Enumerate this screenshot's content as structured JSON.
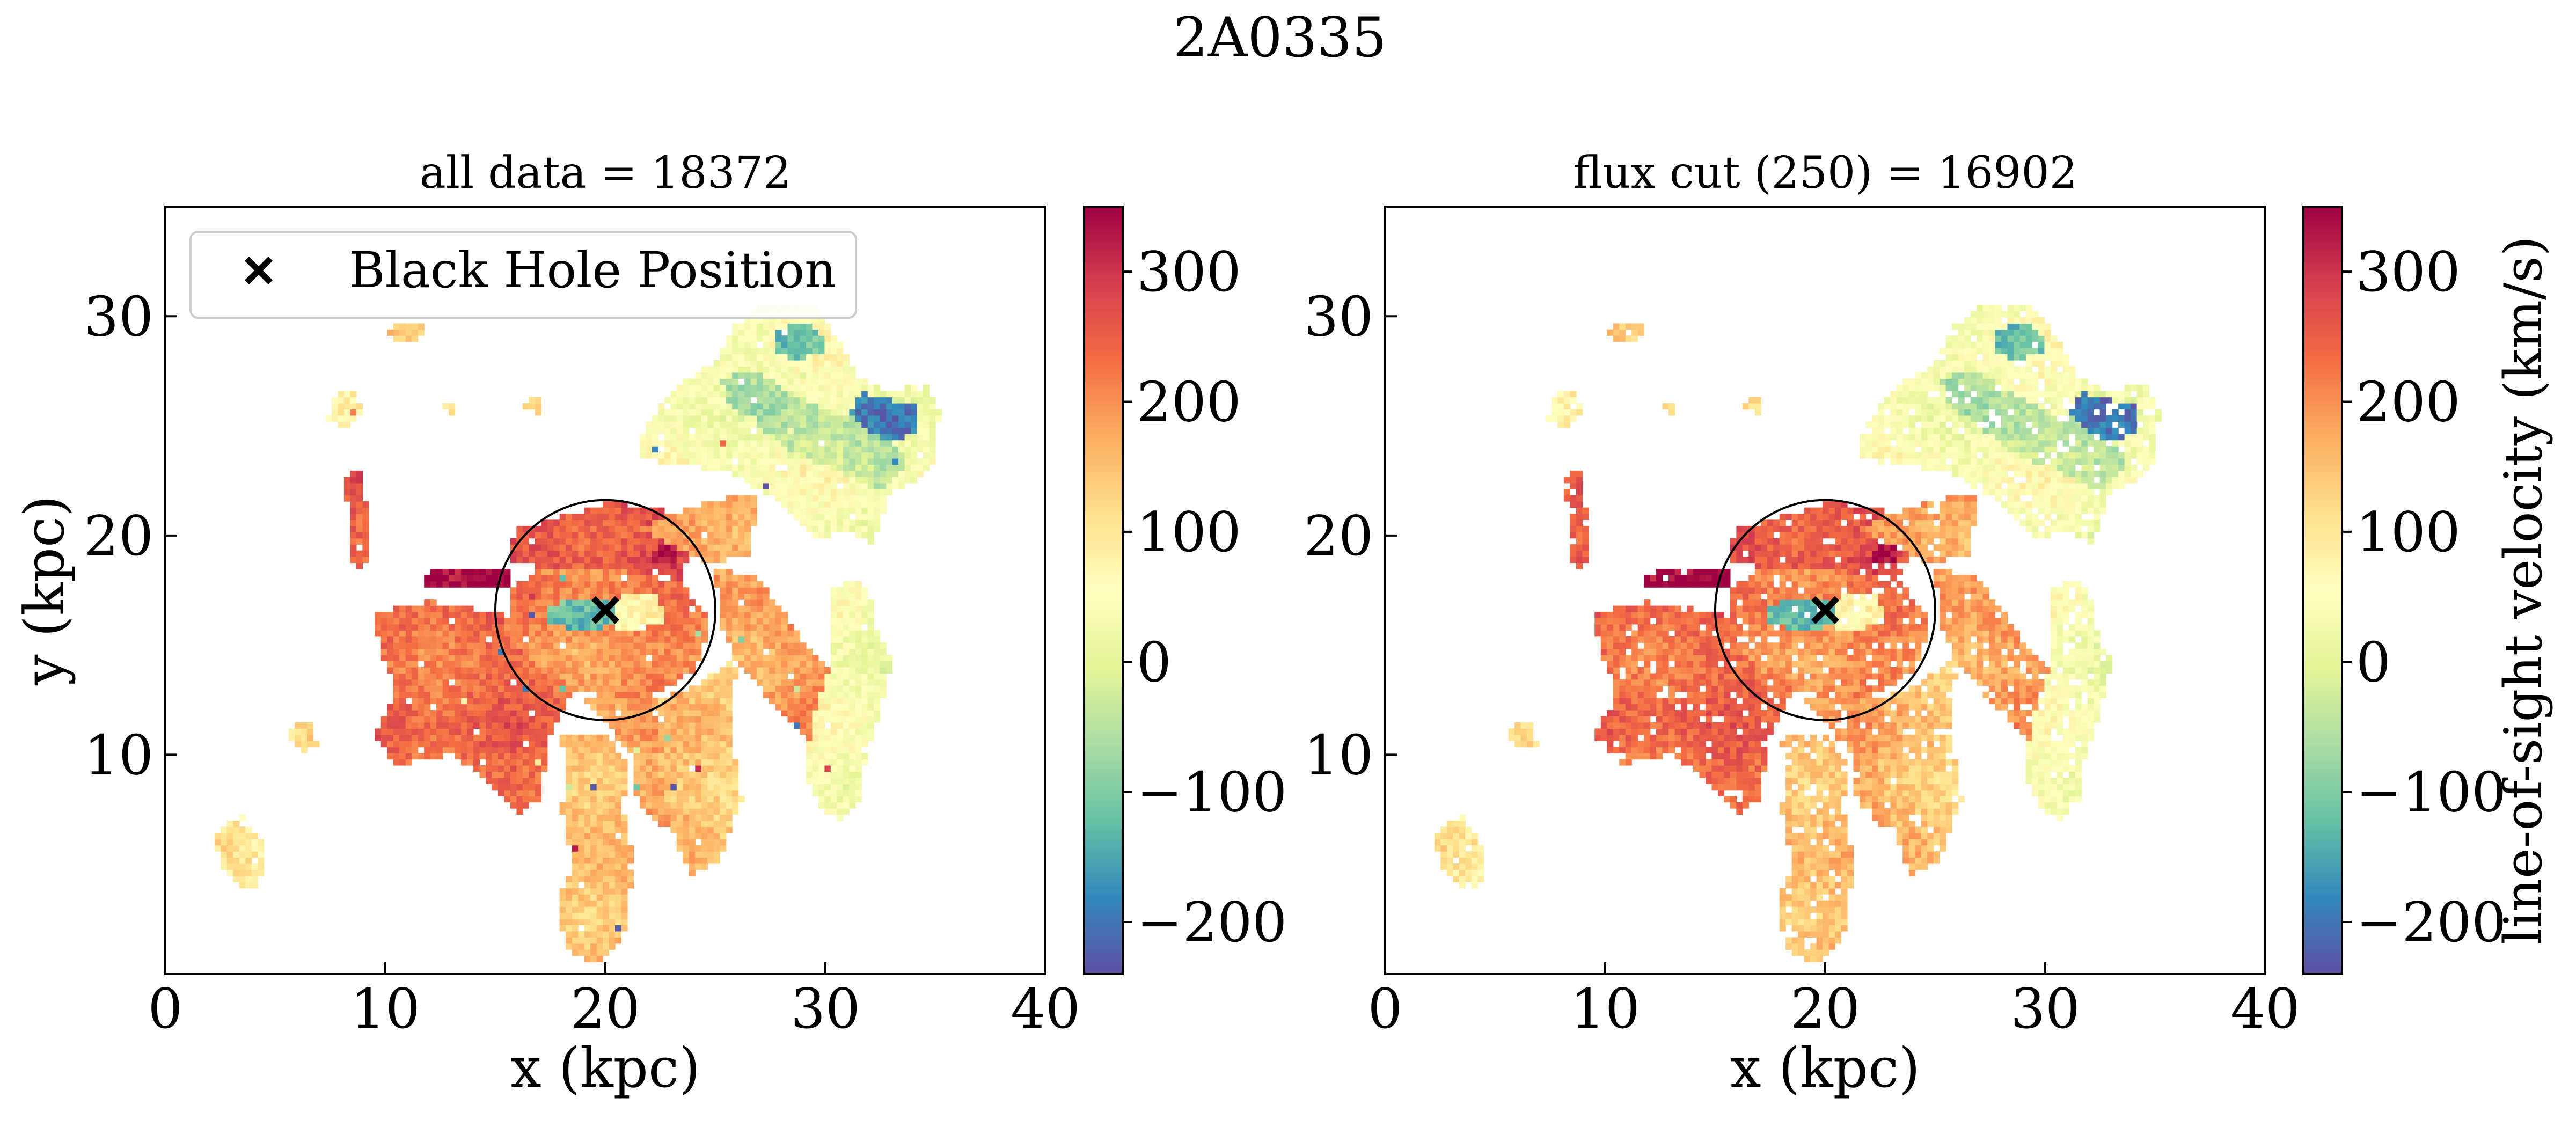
{
  "suptitle": "2A0335",
  "colorbar": {
    "label": "line-of-sight velocity (km/s)",
    "vmin": -240,
    "vmax": 350,
    "ticks": [
      -200,
      -100,
      0,
      100,
      200,
      300
    ],
    "tick_labels": [
      "−200",
      "−100",
      "0",
      "100",
      "200",
      "300"
    ],
    "colormap": "Spectral_r",
    "colors": [
      "#5e4fa2",
      "#3288bd",
      "#66c2a5",
      "#abdda4",
      "#e6f598",
      "#ffffbf",
      "#fee08b",
      "#fdae61",
      "#f46d43",
      "#d53e4f",
      "#9e0142"
    ]
  },
  "legend": {
    "marker_icon": "x-marker-icon",
    "label": "Black Hole Position",
    "placement": "upper-left"
  },
  "chart_data": [
    {
      "type": "heatmap",
      "title": "all data = 18372",
      "xlabel": "x (kpc)",
      "ylabel": "y (kpc)",
      "xlim": [
        0,
        40
      ],
      "ylim": [
        0,
        35
      ],
      "xticks": [
        0,
        10,
        20,
        30,
        40
      ],
      "yticks": [
        10,
        20,
        30
      ],
      "black_hole": {
        "x": 20.0,
        "y": 16.6
      },
      "circle": {
        "cx": 20.0,
        "cy": 16.6,
        "r": 5.0
      },
      "pixel_count": 18372,
      "noise": 0.9,
      "regions": [
        {
          "name": "west-lobe",
          "poly": [
            [
              9.5,
              16.5
            ],
            [
              12,
              17
            ],
            [
              15,
              16.5
            ],
            [
              18,
              15.5
            ],
            [
              18.5,
              13
            ],
            [
              17.5,
              11
            ],
            [
              17,
              8
            ],
            [
              16,
              7.3
            ],
            [
              14.5,
              9
            ],
            [
              13,
              10
            ],
            [
              10.5,
              9.5
            ],
            [
              9.5,
              11
            ],
            [
              10.5,
              13
            ],
            [
              9.8,
              14.5
            ]
          ],
          "v": 235
        },
        {
          "name": "red-north",
          "poly": [
            [
              15.5,
              19
            ],
            [
              16,
              20.3
            ],
            [
              18.5,
              21
            ],
            [
              20,
              21.5
            ],
            [
              22.5,
              21.3
            ],
            [
              24,
              20.2
            ],
            [
              23.5,
              18
            ],
            [
              21,
              18.3
            ],
            [
              18,
              18.2
            ]
          ],
          "v": 265
        },
        {
          "name": "red-peak",
          "poly": [
            [
              21.8,
              18.8
            ],
            [
              23.5,
              20.8
            ],
            [
              23.3,
              18.8
            ]
          ],
          "v": 320
        },
        {
          "name": "core",
          "poly": [
            [
              15.7,
              17.5
            ],
            [
              17,
              18.5
            ],
            [
              20,
              18.6
            ],
            [
              23.5,
              17.8
            ],
            [
              24.8,
              16
            ],
            [
              24,
              13.8
            ],
            [
              21.8,
              12.5
            ],
            [
              19,
              12.8
            ],
            [
              16.8,
              14
            ],
            [
              15.5,
              15.8
            ]
          ],
          "v": 205
        },
        {
          "name": "core-blue",
          "poly": [
            [
              17.3,
              16.8
            ],
            [
              18.8,
              17.2
            ],
            [
              20.3,
              16.9
            ],
            [
              20.5,
              16
            ],
            [
              19,
              15.6
            ],
            [
              17.5,
              16
            ]
          ],
          "v": -120
        },
        {
          "name": "core-yellow",
          "poly": [
            [
              20.5,
              17.2
            ],
            [
              22.3,
              17.3
            ],
            [
              22.8,
              16.2
            ],
            [
              21.5,
              15.6
            ],
            [
              20.5,
              15.8
            ]
          ],
          "v": 55
        },
        {
          "name": "red-tongue",
          "poly": [
            [
              11.8,
              17.8
            ],
            [
              12,
              18.4
            ],
            [
              14.5,
              18.5
            ],
            [
              15.8,
              18.3
            ],
            [
              15.8,
              17.6
            ],
            [
              13,
              17.5
            ]
          ],
          "v": 340
        },
        {
          "name": "south-spur",
          "poly": [
            [
              18,
              10.8
            ],
            [
              20,
              11
            ],
            [
              21,
              9.5
            ],
            [
              20.8,
              7.5
            ],
            [
              21.3,
              5
            ],
            [
              20.8,
              1.5
            ],
            [
              19.5,
              0.5
            ],
            [
              18.3,
              1
            ],
            [
              17.8,
              3.2
            ],
            [
              18.5,
              5
            ],
            [
              18,
              7.5
            ],
            [
              18.3,
              9
            ]
          ],
          "v": 160
        },
        {
          "name": "south-spur-east",
          "poly": [
            [
              19,
              12.6
            ],
            [
              22.5,
              12.6
            ],
            [
              24.5,
              10
            ],
            [
              24,
              7.2
            ],
            [
              23,
              6.5
            ],
            [
              21.5,
              7.6
            ],
            [
              21.2,
              10
            ]
          ],
          "v": 170
        },
        {
          "name": "east-orange",
          "poly": [
            [
              22.3,
              12.5
            ],
            [
              24.2,
              13.2
            ],
            [
              26,
              14.5
            ],
            [
              25.7,
              11
            ],
            [
              26.2,
              8
            ],
            [
              25.2,
              5.2
            ],
            [
              24,
              4.5
            ],
            [
              23.2,
              6
            ],
            [
              22.5,
              9
            ]
          ],
          "v": 145
        },
        {
          "name": "east-arm",
          "poly": [
            [
              25,
              18.5
            ],
            [
              27,
              18
            ],
            [
              29,
              15.2
            ],
            [
              31,
              13.2
            ],
            [
              32,
              12
            ],
            [
              31.5,
              10.2
            ],
            [
              29.5,
              10.5
            ],
            [
              27.5,
              12.5
            ],
            [
              26.2,
              14
            ],
            [
              25.2,
              16
            ]
          ],
          "v": 185
        },
        {
          "name": "north-bridge",
          "poly": [
            [
              21.5,
              20.4
            ],
            [
              24.5,
              21.5
            ],
            [
              27,
              22
            ],
            [
              26.5,
              19
            ],
            [
              24.5,
              18.8
            ],
            [
              22.5,
              19.8
            ]
          ],
          "v": 190
        },
        {
          "name": "north-plume",
          "poly": [
            [
              21.5,
              23.5
            ],
            [
              24,
              23.2
            ],
            [
              25.8,
              22.8
            ],
            [
              28,
              21.5
            ],
            [
              29.5,
              19.8
            ],
            [
              31,
              20.2
            ],
            [
              32.2,
              19.5
            ],
            [
              32.8,
              21.8
            ],
            [
              34.8,
              23
            ],
            [
              35.2,
              25.5
            ],
            [
              34.5,
              27
            ],
            [
              33,
              26.5
            ],
            [
              31.5,
              27.2
            ],
            [
              30.5,
              29
            ],
            [
              29.5,
              30.5
            ],
            [
              27.2,
              30.6
            ],
            [
              25.8,
              29.5
            ],
            [
              25,
              28
            ],
            [
              23.2,
              26.8
            ],
            [
              21.8,
              25
            ]
          ],
          "v": 40
        },
        {
          "name": "plume-green",
          "poly": [
            [
              25.3,
              27.2
            ],
            [
              27,
              27.5
            ],
            [
              28.5,
              26.5
            ],
            [
              30.5,
              25.5
            ],
            [
              32.5,
              25.2
            ],
            [
              33.8,
              23.2
            ],
            [
              32.3,
              22
            ],
            [
              30.5,
              23
            ],
            [
              29,
              23.5
            ],
            [
              27,
              25
            ],
            [
              25.5,
              26
            ]
          ],
          "v": -45
        },
        {
          "name": "plume-blue-1",
          "poly": [
            [
              27.8,
              29.4
            ],
            [
              29.3,
              29.8
            ],
            [
              30.2,
              28.5
            ],
            [
              28.6,
              28
            ],
            [
              27.6,
              28.5
            ]
          ],
          "v": -140
        },
        {
          "name": "plume-blue-2",
          "poly": [
            [
              31.6,
              26.5
            ],
            [
              33,
              26.2
            ],
            [
              34.2,
              25.9
            ],
            [
              34.2,
              24.8
            ],
            [
              33,
              24.3
            ],
            [
              31.8,
              24.9
            ],
            [
              31.1,
              25.7
            ]
          ],
          "v": -175
        },
        {
          "name": "east-filament",
          "poly": [
            [
              30.3,
              17.5
            ],
            [
              31.3,
              18
            ],
            [
              32,
              17.5
            ],
            [
              32.2,
              16
            ],
            [
              33,
              14.2
            ],
            [
              32.5,
              12
            ],
            [
              31.8,
              10
            ],
            [
              31.7,
              8
            ],
            [
              30.8,
              7
            ],
            [
              29.8,
              7.6
            ],
            [
              29,
              9
            ],
            [
              29.5,
              12
            ],
            [
              30.2,
              14
            ]
          ],
          "v": 35
        },
        {
          "name": "west-filament",
          "poly": [
            [
              8,
              22.5
            ],
            [
              8.8,
              23
            ],
            [
              9.2,
              21
            ],
            [
              9.3,
              19.5
            ],
            [
              9,
              18.5
            ],
            [
              8.4,
              18.8
            ],
            [
              8.5,
              20.5
            ]
          ],
          "v": 240
        },
        {
          "name": "west-blob-nw",
          "poly": [
            [
              7.5,
              26.3
            ],
            [
              8.5,
              26.8
            ],
            [
              9,
              25.7
            ],
            [
              8.2,
              24.8
            ],
            [
              7.4,
              25.3
            ]
          ],
          "v": 85
        },
        {
          "name": "west-blob-n",
          "poly": [
            [
              10,
              29.5
            ],
            [
              11.8,
              29.8
            ],
            [
              11.5,
              28.8
            ],
            [
              10.3,
              28.8
            ]
          ],
          "v": 130
        },
        {
          "name": "north-blob",
          "poly": [
            [
              12.6,
              26
            ],
            [
              13.2,
              26
            ],
            [
              13,
              25.3
            ]
          ],
          "v": 140
        },
        {
          "name": "small-west",
          "poly": [
            [
              5.8,
              11.4
            ],
            [
              6.6,
              11.6
            ],
            [
              6.9,
              10.5
            ],
            [
              6.2,
              10.1
            ],
            [
              5.6,
              10.8
            ]
          ],
          "v": 110
        },
        {
          "name": "sw-blob",
          "poly": [
            [
              2.4,
              6.7
            ],
            [
              3.5,
              7.2
            ],
            [
              4.5,
              5.9
            ],
            [
              4.6,
              4.2
            ],
            [
              3.5,
              3.8
            ],
            [
              2.5,
              4.9
            ],
            [
              2.3,
              6
            ]
          ],
          "v": 90
        },
        {
          "name": "nw-blob",
          "poly": [
            [
              16.5,
              26.5
            ],
            [
              17.2,
              26.2
            ],
            [
              17,
              25.5
            ],
            [
              16.3,
              25.9
            ]
          ],
          "v": 120
        }
      ]
    },
    {
      "type": "heatmap",
      "title": "flux cut (250) = 16902",
      "xlabel": "x (kpc)",
      "ylabel": "",
      "xlim": [
        0,
        40
      ],
      "ylim": [
        0,
        35
      ],
      "xticks": [
        0,
        10,
        20,
        30,
        40
      ],
      "yticks": [
        10,
        20,
        30
      ],
      "black_hole": {
        "x": 20.0,
        "y": 16.6
      },
      "circle": {
        "cx": 20.0,
        "cy": 16.6,
        "r": 5.0
      },
      "pixel_count": 16902,
      "noise": 0.8,
      "regions": "same-as-panel-1-with-flux-cut"
    }
  ]
}
